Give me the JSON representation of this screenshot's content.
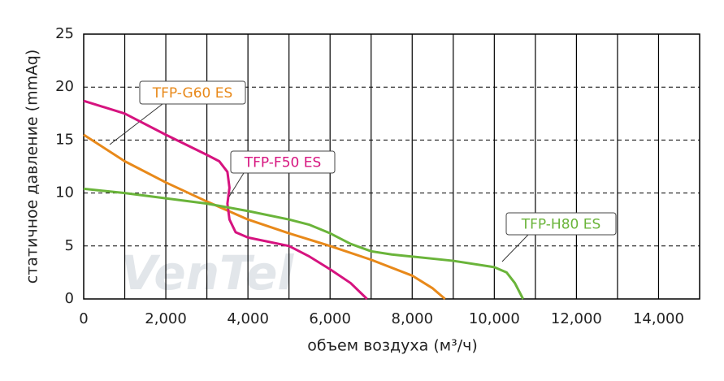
{
  "chart_data": {
    "type": "line",
    "xlabel": "объем воздуха (м³/ч)",
    "ylabel": "статичное давление (mmAq)",
    "watermark": "VenTel",
    "xlim": [
      0,
      15000
    ],
    "xticks": [
      0,
      {
        "value": 2000,
        "label": "2,000"
      },
      {
        "value": 4000,
        "label": "4,000"
      },
      {
        "value": 6000,
        "label": "6,000"
      },
      {
        "value": 8000,
        "label": "8,000"
      },
      {
        "value": 10000,
        "label": "10,000"
      },
      {
        "value": 12000,
        "label": "12,000"
      },
      {
        "value": 14000,
        "label": "14,000"
      }
    ],
    "xgrid": [
      1000,
      2000,
      3000,
      4000,
      5000,
      6000,
      7000,
      8000,
      9000,
      10000,
      11000,
      12000,
      13000,
      14000
    ],
    "ylim": [
      0,
      25
    ],
    "yticks": [
      0,
      5,
      10,
      15,
      20,
      25
    ],
    "grid": true,
    "series": [
      {
        "name": "TFP-G60 ES",
        "color": "#e8891a",
        "x": [
          0,
          1000,
          2000,
          3000,
          4000,
          5000,
          6000,
          7000,
          8000,
          8500,
          8800
        ],
        "values": [
          15.5,
          13,
          11,
          9.2,
          7.5,
          6.2,
          5,
          3.7,
          2.2,
          1,
          0
        ]
      },
      {
        "name": "TFP-F50 ES",
        "color": "#d6137f",
        "x": [
          0,
          1000,
          2000,
          3000,
          3300,
          3500,
          3550,
          3500,
          3550,
          3700,
          4000,
          5000,
          5500,
          6000,
          6500,
          6900
        ],
        "values": [
          18.7,
          17.5,
          15.5,
          13.6,
          13,
          12,
          10.5,
          9,
          7.5,
          6.3,
          5.8,
          5,
          4,
          2.8,
          1.5,
          0
        ]
      },
      {
        "name": "TFP-H80 ES",
        "color": "#6ab43a",
        "x": [
          0,
          1000,
          2000,
          3000,
          4000,
          5000,
          5500,
          6000,
          6500,
          7000,
          7500,
          8000,
          9000,
          10000,
          10300,
          10500,
          10700
        ],
        "values": [
          10.4,
          10,
          9.5,
          9,
          8.3,
          7.5,
          7,
          6.2,
          5.2,
          4.5,
          4.2,
          4,
          3.6,
          3,
          2.5,
          1.5,
          0
        ]
      }
    ]
  }
}
